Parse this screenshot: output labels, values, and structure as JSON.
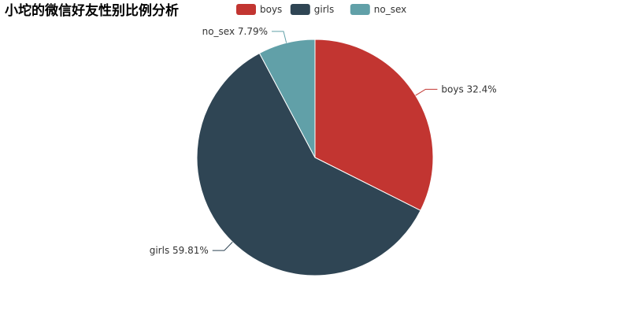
{
  "chart_data": {
    "type": "pie",
    "title": "小坨的微信好友性别比例分析",
    "categories": [
      "boys",
      "girls",
      "no_sex"
    ],
    "values": [
      32.4,
      59.81,
      7.79
    ],
    "unit": "%",
    "slice_labels": [
      "boys 32.4%",
      "girls 59.81%",
      "no_sex 7.79%"
    ],
    "colors": [
      "#c23531",
      "#2f4554",
      "#61a0a8"
    ],
    "legend": {
      "entries": [
        "boys",
        "girls",
        "no_sex"
      ],
      "placement": "top-center"
    },
    "start_angle_deg": 90,
    "direction": "clockwise"
  }
}
